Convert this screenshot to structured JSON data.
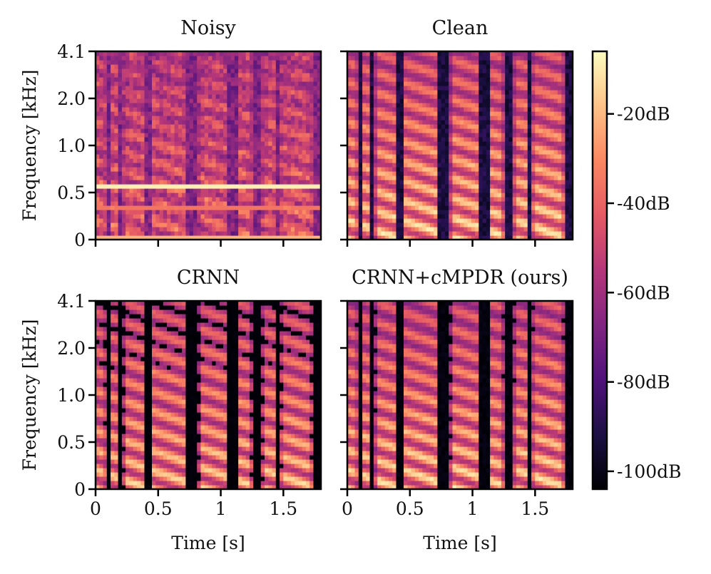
{
  "chart_data": {
    "type": "heatmap",
    "panels": [
      {
        "title": "Noisy",
        "kind": "noisy"
      },
      {
        "title": "Clean",
        "kind": "clean"
      },
      {
        "title": "CRNN",
        "kind": "crnn"
      },
      {
        "title": "CRNN+cMPDR (ours)",
        "kind": "ours"
      }
    ],
    "xlabel": "Time [s]",
    "ylabel": "Frequency [kHz]",
    "xlim": [
      0,
      1.8
    ],
    "x_ticks": [
      {
        "value": 0,
        "label": "0"
      },
      {
        "value": 0.5,
        "label": "0.5"
      },
      {
        "value": 1,
        "label": "1"
      },
      {
        "value": 1.5,
        "label": "1.5"
      }
    ],
    "y_ticks": [
      {
        "value": 0,
        "label": "0"
      },
      {
        "value": 0.5,
        "label": "0.5"
      },
      {
        "value": 1.0,
        "label": "1.0"
      },
      {
        "value": 2.0,
        "label": "2.0"
      },
      {
        "value": 4.1,
        "label": "4.1"
      }
    ],
    "colorbar": {
      "range_db": [
        -104,
        -6
      ],
      "ticks": [
        {
          "value": -20,
          "label": "-20dB"
        },
        {
          "value": -40,
          "label": "-40dB"
        },
        {
          "value": -60,
          "label": "-60dB"
        },
        {
          "value": -80,
          "label": "-80dB"
        },
        {
          "value": -100,
          "label": "-100dB"
        }
      ]
    },
    "colors": [
      "#000004",
      "#1c1044",
      "#4f127b",
      "#812581",
      "#b5367a",
      "#e55964",
      "#fb8761",
      "#fec287",
      "#fcfdbf"
    ]
  }
}
